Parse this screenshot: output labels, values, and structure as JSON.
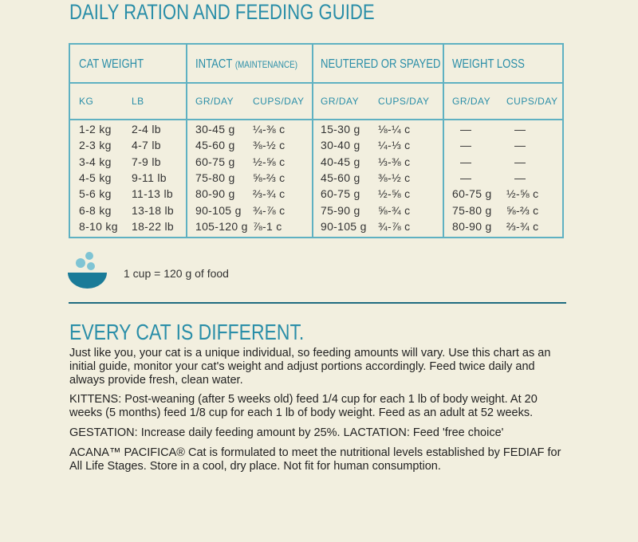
{
  "header": {
    "title": "DAILY RATION AND FEEDING GUIDE"
  },
  "table": {
    "headers": [
      "CAT WEIGHT",
      "INTACT",
      "(MAINTENANCE)",
      "NEUTERED OR SPAYED",
      "WEIGHT LOSS"
    ],
    "subheaders": [
      "KG",
      "LB",
      "GR/DAY",
      "CUPS/DAY",
      "GR/DAY",
      "CUPS/DAY",
      "GR/DAY",
      "CUPS/DAY"
    ],
    "rows": [
      [
        "1-2 kg",
        "2-4 lb",
        "30-45 g",
        "¼-⅜ c",
        "15-30 g",
        "⅛-¼ c",
        "—",
        "—"
      ],
      [
        "2-3 kg",
        "4-7 lb",
        "45-60 g",
        "⅜-½ c",
        "30-40 g",
        "¼-⅓ c",
        "—",
        "—"
      ],
      [
        "3-4 kg",
        "7-9 lb",
        "60-75 g",
        "½-⅝ c",
        "40-45 g",
        "⅓-⅜ c",
        "—",
        "—"
      ],
      [
        "4-5 kg",
        "9-11 lb",
        "75-80 g",
        "⅝-⅔ c",
        "45-60 g",
        "⅜-½ c",
        "—",
        "—"
      ],
      [
        "5-6 kg",
        "11-13 lb",
        "80-90 g",
        "⅔-¾ c",
        "60-75 g",
        "½-⅝ c",
        "60-75 g",
        "½-⅝ c"
      ],
      [
        "6-8 kg",
        "13-18 lb",
        "90-105 g",
        "¾-⅞ c",
        "75-90 g",
        "⅝-¾ c",
        "75-80 g",
        "⅝-⅔ c"
      ],
      [
        "8-10 kg",
        "18-22 lb",
        "105-120 g",
        "⅞-1 c",
        "90-105 g",
        "¾-⅞ c",
        "80-90 g",
        "⅔-¾ c"
      ]
    ]
  },
  "note": "1 cup = 120 g of food",
  "section": {
    "heading": "EVERY CAT IS DIFFERENT.",
    "paragraphs": [
      "Just like you, your cat is a unique individual, so feeding amounts will vary. Use this chart as an initial guide, monitor your cat's weight and adjust portions accordingly. Feed twice daily and always provide fresh, clean water.",
      "KITTENS: Post-weaning (after 5 weeks old) feed 1/4 cup for each 1 lb of body weight. At 20 weeks (5 months) feed 1/8 cup for each 1 lb of body weight. Feed as an adult at 52 weeks.",
      "GESTATION: Increase daily feeding amount by 25%. LACTATION: Feed 'free choice'",
      "ACANA™ PACIFICA® Cat is formulated to meet the nutritional levels established by FEDIAF for All Life Stages. Store in a cool, dry place. Not fit for human consumption."
    ]
  }
}
